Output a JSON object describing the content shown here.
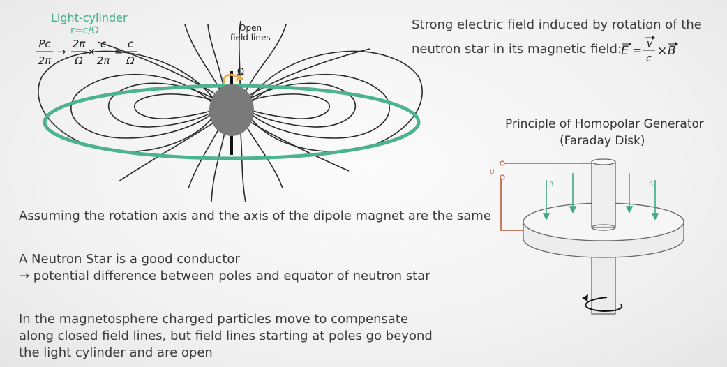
{
  "light_cylinder": {
    "title": "Light-cylinder",
    "radius": "r=c/Ω",
    "formula": {
      "lhs_num": "Pc",
      "lhs_den": "2π",
      "arrow": "→",
      "f1_num": "2π",
      "f1_den": "Ω",
      "times": "×",
      "f2_num": "c",
      "f2_den": "2π",
      "equals": "=",
      "f3_num": "c",
      "f3_den": "Ω"
    }
  },
  "star_diagram": {
    "open_label_line1": "Open",
    "open_label_line2": "field lines",
    "omega": "Ω"
  },
  "electric_field": {
    "line1": "Strong electric field induced by rotation of the",
    "line2": "neutron star in its magnetic field:",
    "formula": {
      "E": "E",
      "equals": "=",
      "frac_num": "v",
      "frac_den": "c",
      "times": "×",
      "B": "B"
    }
  },
  "homopolar": {
    "title_line1": "Principle of Homopolar Generator",
    "title_line2": "(Faraday Disk)",
    "u_label": "U",
    "b_label": "B"
  },
  "statements": {
    "assumption": "Assuming the rotation axis and the axis of the dipole magnet are the same",
    "conductor_line1": "A Neutron Star is a good conductor",
    "conductor_line2": "→ potential difference between poles and equator of neutron star",
    "magneto_line1": "In the magnetosphere charged particles move to compensate",
    "magneto_line2": "along closed field lines, but field lines starting at poles go beyond",
    "magneto_line3": "the light cylinder and are open"
  },
  "colors": {
    "light_cylinder_ring": "#4db38f",
    "light_cylinder_text": "#3fae8a",
    "star": "#7a7a7a",
    "rotation_arrow": "#e6b04a",
    "circuit_wire": "#c96a52",
    "field_arrow": "#3fa88a",
    "field_lines": "#2a2a2a"
  }
}
